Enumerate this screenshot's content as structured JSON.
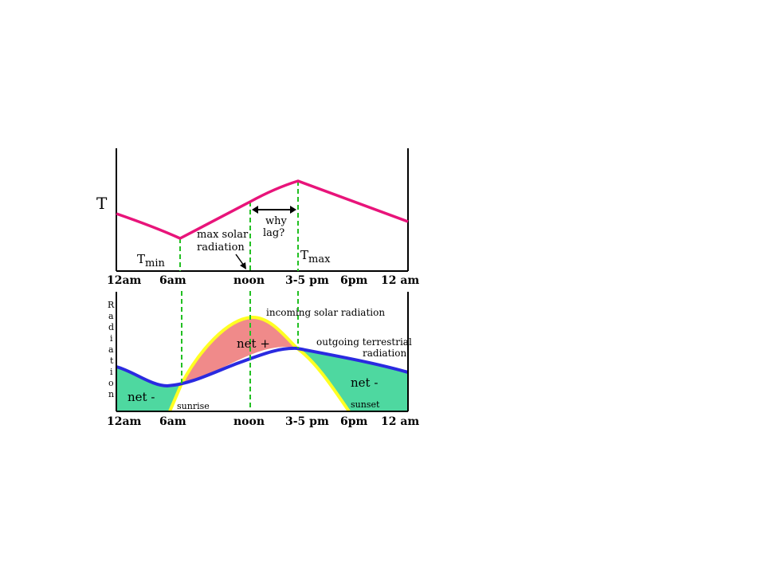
{
  "top_panel": {
    "y_label": "T",
    "tmin_main": "T",
    "tmin_sub": "min",
    "tmax_main": "T",
    "tmax_sub": "max",
    "max_solar_line1": "max solar",
    "max_solar_line2": "radiation",
    "why_line1": "why",
    "why_line2": "lag?",
    "x_ticks": [
      "12am",
      "6am",
      "noon",
      "3-5 pm",
      "6pm",
      "12 am"
    ]
  },
  "bottom_panel": {
    "y_label_letters": [
      "R",
      "a",
      "d",
      "i",
      "a",
      "t",
      "i",
      "o",
      "n"
    ],
    "incoming_label": "incoming solar radiation",
    "outgoing_line1": "outgoing terrestrial",
    "outgoing_line2": "radiation",
    "net_plus": "net +",
    "net_minus_left": "net -",
    "net_minus_right": "net -",
    "sunrise": "sunrise",
    "sunset": "sunset",
    "x_ticks": [
      "12am",
      "6am",
      "noon",
      "3-5 pm",
      "6pm",
      "12 am"
    ]
  },
  "colors": {
    "temperature_curve": "#e8147a",
    "incoming_curve": "#ffff22",
    "outgoing_curve": "#2a2ae0",
    "net_positive_fill": "#f08a8a",
    "net_negative_fill": "#4ed8a0",
    "guide_lines": "#22c022",
    "axes": "#000000"
  }
}
